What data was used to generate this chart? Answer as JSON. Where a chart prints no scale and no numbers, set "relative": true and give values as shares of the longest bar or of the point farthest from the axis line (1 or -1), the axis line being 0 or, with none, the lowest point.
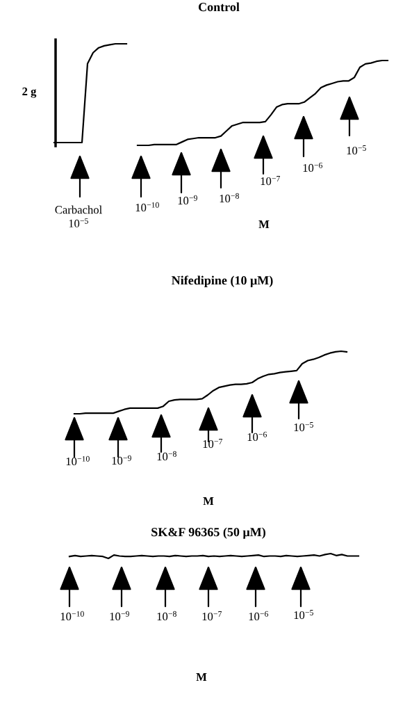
{
  "chart_data": [
    {
      "type": "line",
      "relative": true,
      "tick_labels": false,
      "color": "#000000",
      "categories": [
        null,
        null,
        null,
        null,
        null,
        null,
        null,
        null,
        null,
        null,
        null,
        null,
        null,
        null
      ],
      "values": [
        0,
        0,
        0,
        0,
        0,
        0,
        0.8,
        0.91,
        0.96,
        0.98,
        0.99,
        1.0,
        1.0,
        1.0
      ],
      "annotations": [
        "2 g",
        "Carbachol\n10$^{−5}$"
      ]
    },
    {
      "type": "line",
      "title": "Control",
      "xlabel": "M",
      "relative": true,
      "tick_labels": false,
      "color": "#000000",
      "categories": [
        null,
        null,
        null,
        null,
        null,
        null,
        null,
        null,
        null,
        null,
        null,
        null,
        null,
        null,
        null,
        null,
        null,
        null,
        null,
        null,
        null,
        null,
        null,
        null,
        null,
        null,
        null,
        null,
        null,
        null,
        null,
        null,
        null,
        null,
        null,
        null,
        null,
        null,
        null,
        null,
        null,
        null,
        null,
        null,
        null,
        null
      ],
      "values": [
        0,
        0,
        0,
        0.01,
        0.01,
        0.01,
        0.01,
        0.01,
        0.04,
        0.07,
        0.08,
        0.09,
        0.09,
        0.09,
        0.09,
        0.11,
        0.17,
        0.23,
        0.25,
        0.27,
        0.27,
        0.27,
        0.27,
        0.28,
        0.36,
        0.45,
        0.48,
        0.49,
        0.49,
        0.49,
        0.51,
        0.56,
        0.61,
        0.68,
        0.71,
        0.73,
        0.75,
        0.76,
        0.76,
        0.8,
        0.92,
        0.96,
        0.97,
        0.99,
        1.0,
        1.0
      ],
      "annotations": [
        "10$^{−10}$",
        "10$^{−9}$",
        "10$^{−8}$",
        "10$^{−7}$",
        "10$^{−6}$",
        "10$^{−5}$"
      ]
    },
    {
      "type": "line",
      "title": "Nifedipine (10 μM)",
      "xlabel": "M",
      "relative": true,
      "tick_labels": false,
      "color": "#000000",
      "categories": [
        null,
        null,
        null,
        null,
        null,
        null,
        null,
        null,
        null,
        null,
        null,
        null,
        null,
        null,
        null,
        null,
        null,
        null,
        null,
        null,
        null,
        null,
        null,
        null,
        null,
        null,
        null,
        null,
        null,
        null,
        null,
        null,
        null,
        null,
        null,
        null,
        null,
        null,
        null,
        null,
        null,
        null,
        null,
        null,
        null,
        null,
        null,
        null,
        null,
        null
      ],
      "values": [
        0,
        0,
        0.01,
        0.01,
        0.01,
        0.01,
        0.01,
        0.01,
        0.04,
        0.07,
        0.09,
        0.09,
        0.09,
        0.09,
        0.09,
        0.09,
        0.12,
        0.2,
        0.22,
        0.23,
        0.23,
        0.23,
        0.23,
        0.24,
        0.3,
        0.37,
        0.42,
        0.44,
        0.46,
        0.47,
        0.47,
        0.48,
        0.5,
        0.56,
        0.6,
        0.63,
        0.64,
        0.66,
        0.67,
        0.68,
        0.69,
        0.8,
        0.85,
        0.87,
        0.9,
        0.94,
        0.97,
        0.99,
        1.0,
        0.99
      ],
      "annotations": [
        "10$^{−10}$",
        "10$^{−9}$",
        "10$^{−8}$",
        "10$^{−7}$",
        "10$^{−6}$",
        "10$^{−5}$"
      ]
    },
    {
      "type": "line",
      "title": "SK&F 96365 (50 μM)",
      "xlabel": "M",
      "relative": true,
      "tick_labels": false,
      "color": "#000000",
      "categories": [
        null,
        null,
        null,
        null,
        null,
        null,
        null,
        null,
        null,
        null,
        null,
        null,
        null,
        null,
        null,
        null,
        null,
        null,
        null,
        null,
        null,
        null,
        null,
        null,
        null,
        null,
        null,
        null,
        null,
        null,
        null,
        null,
        null,
        null,
        null,
        null,
        null,
        null,
        null,
        null,
        null,
        null,
        null,
        null,
        null,
        null,
        null,
        null,
        null,
        null,
        null,
        null,
        null
      ],
      "values": [
        0.4,
        0.6,
        0.4,
        0.5,
        0.6,
        0.5,
        0.4,
        0.0,
        0.7,
        0.5,
        0.4,
        0.4,
        0.5,
        0.6,
        0.5,
        0.4,
        0.5,
        0.5,
        0.4,
        0.6,
        0.5,
        0.4,
        0.5,
        0.5,
        0.6,
        0.4,
        0.5,
        0.4,
        0.5,
        0.6,
        0.5,
        0.4,
        0.5,
        0.6,
        0.7,
        0.4,
        0.5,
        0.5,
        0.4,
        0.6,
        0.5,
        0.4,
        0.5,
        0.6,
        0.7,
        0.5,
        0.8,
        1.0,
        0.6,
        0.8,
        0.5,
        0.5,
        0.5
      ],
      "annotations": [
        "10$^{−10}$",
        "10$^{−9}$",
        "10$^{−8}$",
        "10$^{−7}$",
        "10$^{−6}$",
        "10$^{−5}$"
      ]
    }
  ]
}
